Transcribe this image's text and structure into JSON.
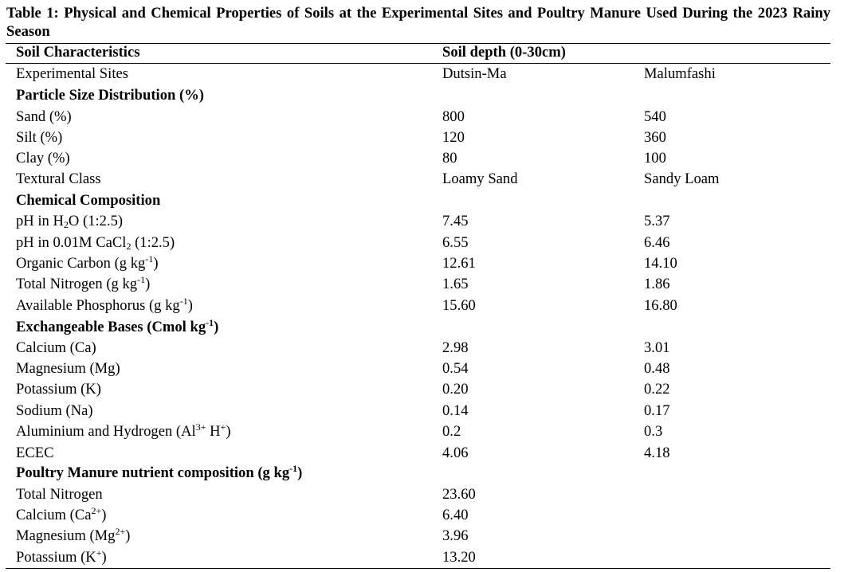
{
  "table": {
    "caption": "Table 1: Physical and Chemical Properties of Soils at the Experimental Sites and Poultry Manure Used During the 2023 Rainy Season",
    "header": {
      "col1": "Soil Characteristics",
      "col2": "Soil depth (0-30cm)"
    },
    "sites": {
      "label": "Experimental Sites",
      "site1": "Dutsin-Ma",
      "site2": "Malumfashi"
    },
    "particle": {
      "heading": "Particle Size Distribution (%)",
      "sand": {
        "label": "Sand (%)",
        "v1": "800",
        "v2": "540"
      },
      "silt": {
        "label": "Silt (%)",
        "v1": "120",
        "v2": "360"
      },
      "clay": {
        "label": "Clay (%)",
        "v1": "80",
        "v2": "100"
      },
      "texture": {
        "label": "Textural Class",
        "v1": "Loamy Sand",
        "v2": "Sandy Loam"
      }
    },
    "chemical": {
      "heading": "Chemical Composition",
      "ph_water": {
        "label_a": "pH in H",
        "label_sub": "2",
        "label_b": "O (1:2.5)",
        "v1": "7.45",
        "v2": "5.37"
      },
      "ph_cacl": {
        "label_a": "pH in 0.01M CaCl",
        "label_sub": "2",
        "label_b": " (1:2.5)",
        "v1": "6.55",
        "v2": "6.46"
      },
      "oc": {
        "label_a": "Organic Carbon (g kg",
        "label_sup": "-1",
        "label_b": ")",
        "v1": "12.61",
        "v2": "14.10"
      },
      "tn": {
        "label_a": "Total Nitrogen (g kg",
        "label_sup": "-1",
        "label_b": ")",
        "v1": "1.65",
        "v2": "1.86"
      },
      "ap": {
        "label_a": "Available Phosphorus (g kg",
        "label_sup": "-1",
        "label_b": ")",
        "v1": "15.60",
        "v2": "16.80"
      }
    },
    "bases": {
      "heading_a": "Exchangeable Bases (Cmol kg",
      "heading_sup": "-1",
      "heading_b": ")",
      "ca": {
        "label": "Calcium (Ca)",
        "v1": "2.98",
        "v2": "3.01"
      },
      "mg": {
        "label": "Magnesium (Mg)",
        "v1": "0.54",
        "v2": "0.48"
      },
      "k": {
        "label": "Potassium (K)",
        "v1": "0.20",
        "v2": "0.22"
      },
      "na": {
        "label": "Sodium (Na)",
        "v1": "0.14",
        "v2": "0.17"
      },
      "alh": {
        "label_a": "Aluminium and Hydrogen (Al",
        "label_sup1": "3+",
        "label_b": " H",
        "label_sup2": "+",
        "label_c": ")",
        "v1": "0.2",
        "v2": "0.3"
      },
      "ecec": {
        "label": "ECEC",
        "v1": "4.06",
        "v2": "4.18"
      }
    },
    "manure": {
      "heading_a": "Poultry Manure nutrient composition (g kg",
      "heading_sup": "-1",
      "heading_b": ")",
      "tn": {
        "label": "Total Nitrogen",
        "v1": "23.60"
      },
      "ca": {
        "label_a": "Calcium (Ca",
        "label_sup": "2+",
        "label_b": ")",
        "v1": "6.40"
      },
      "mg": {
        "label_a": "Magnesium (Mg",
        "label_sup": "2+",
        "label_b": ")",
        "v1": "3.96"
      },
      "k": {
        "label_a": "Potassium (K",
        "label_sup": "+",
        "label_b": ")",
        "v1": "13.20"
      }
    }
  }
}
